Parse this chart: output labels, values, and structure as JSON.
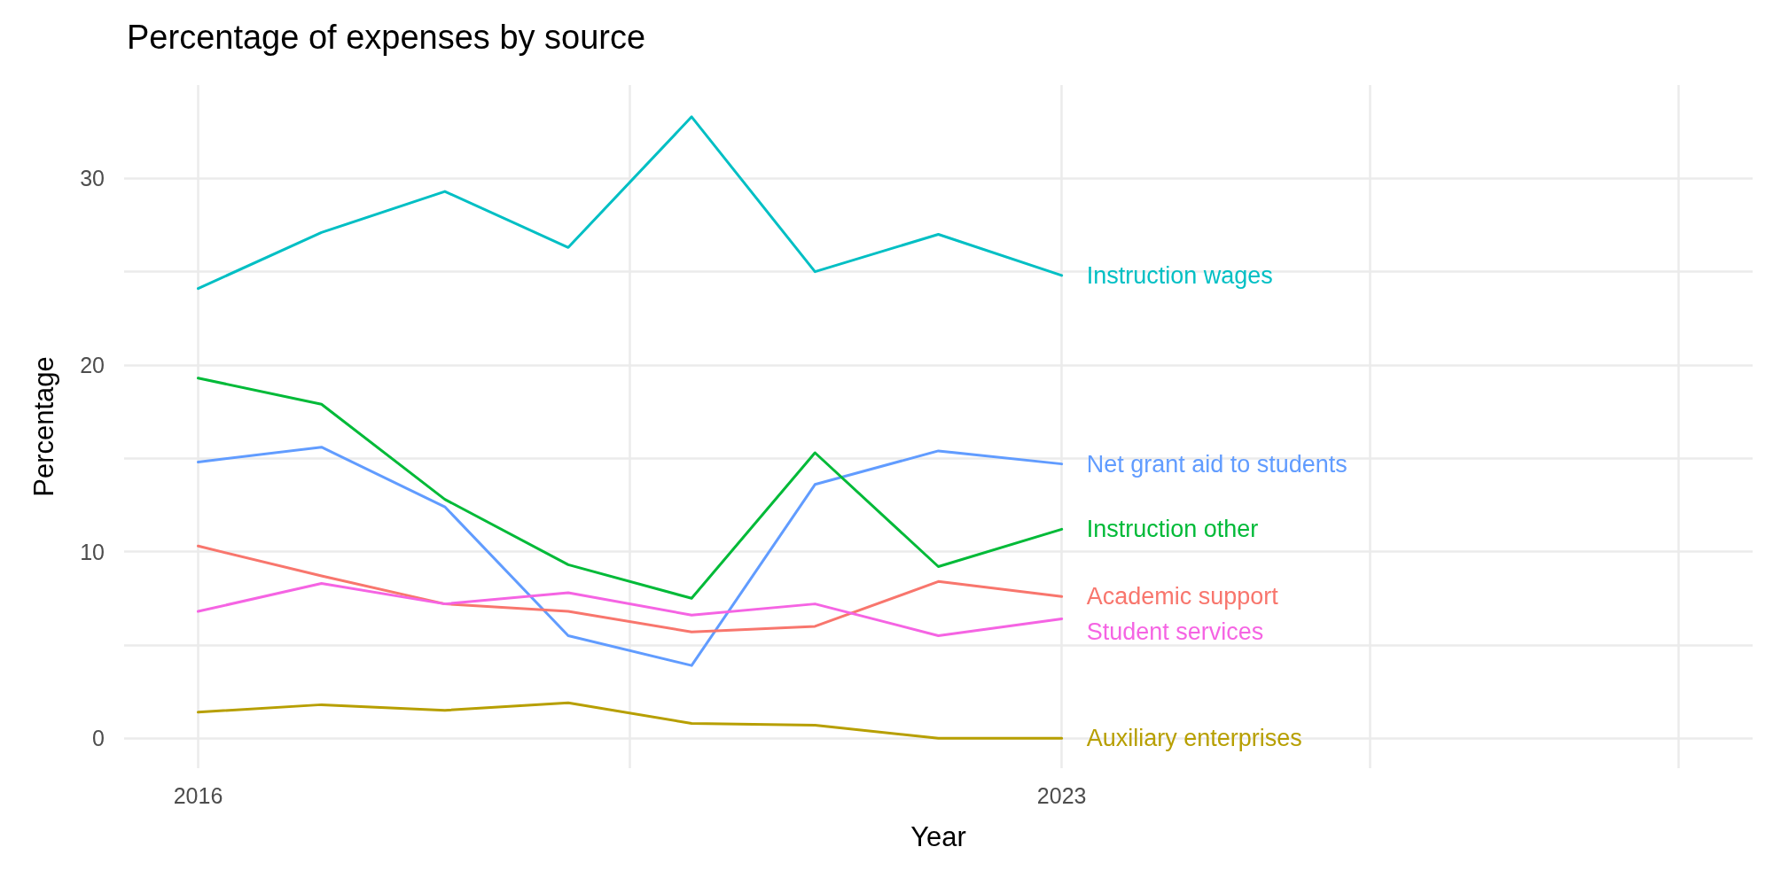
{
  "chart_data": {
    "type": "line",
    "title": "Percentage of expenses by source",
    "xlabel": "Year",
    "ylabel": "Percentage",
    "x": [
      2016,
      2017,
      2018,
      2019,
      2020,
      2021,
      2022,
      2023
    ],
    "xlim": [
      2015.4,
      2028.6
    ],
    "xticks": [
      2016,
      {
        "value": 2019.5,
        "label": null
      },
      2023,
      {
        "value": 2025.5,
        "label": null
      },
      {
        "value": 2028,
        "label": null
      }
    ],
    "ylim": [
      -1.6,
      35
    ],
    "yticks": [
      0,
      {
        "value": 5,
        "label": null
      },
      10,
      {
        "value": 15,
        "label": null
      },
      20,
      {
        "value": 25,
        "label": null
      },
      30
    ],
    "grid": true,
    "legend": false,
    "marker": "none",
    "line_style": "solid",
    "series": [
      {
        "name": "Instruction wages",
        "color": "#00bfc4",
        "values": [
          24.1,
          27.1,
          29.3,
          26.3,
          33.3,
          25.0,
          27.0,
          24.8
        ]
      },
      {
        "name": "Net grant aid to students",
        "color": "#619cff",
        "values": [
          14.8,
          15.6,
          12.4,
          5.5,
          3.9,
          13.6,
          15.4,
          14.7
        ]
      },
      {
        "name": "Instruction other",
        "color": "#00ba38",
        "values": [
          19.3,
          17.9,
          12.8,
          9.3,
          7.5,
          15.3,
          9.2,
          11.2
        ]
      },
      {
        "name": "Academic support",
        "color": "#f8766d",
        "values": [
          10.3,
          8.7,
          7.2,
          6.8,
          5.7,
          6.0,
          8.4,
          7.6
        ]
      },
      {
        "name": "Student services",
        "color": "#f564e3",
        "values": [
          6.8,
          8.3,
          7.2,
          7.8,
          6.6,
          7.2,
          5.5,
          6.4
        ]
      },
      {
        "name": "Auxiliary enterprises",
        "color": "#b79f00",
        "values": [
          1.4,
          1.8,
          1.5,
          1.9,
          0.8,
          0.7,
          0,
          0
        ]
      }
    ]
  }
}
